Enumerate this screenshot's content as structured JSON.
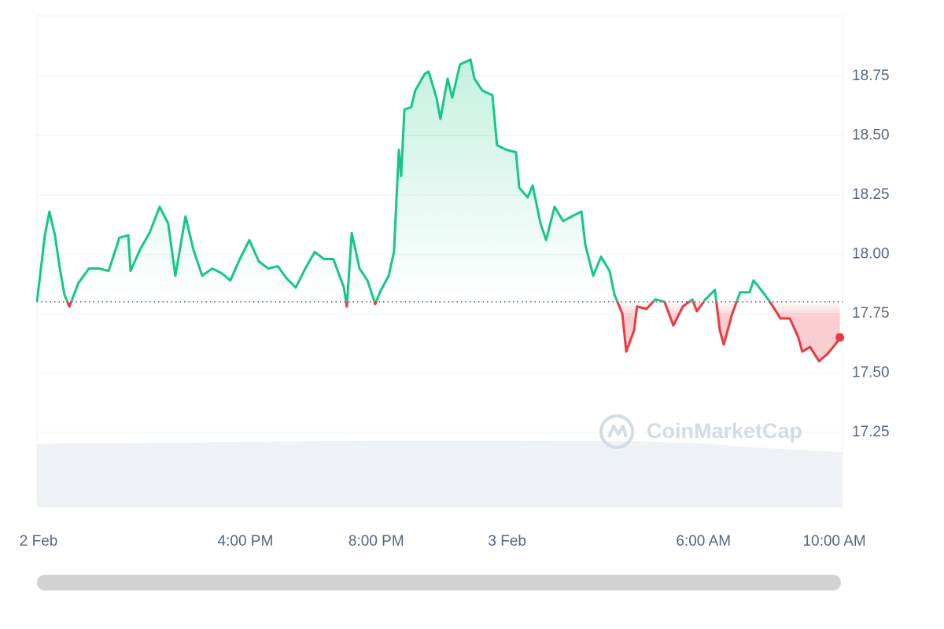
{
  "chart_data": {
    "type": "line",
    "x": [
      9.63,
      9.87,
      10.01,
      10.18,
      10.33,
      10.47,
      10.62,
      10.9,
      11.22,
      11.53,
      11.82,
      12.15,
      12.42,
      12.49,
      12.78,
      13.07,
      13.38,
      13.64,
      13.86,
      14.17,
      14.41,
      14.68,
      14.99,
      15.28,
      15.54,
      15.83,
      16.12,
      16.41,
      16.7,
      16.99,
      17.25,
      17.54,
      17.83,
      18.12,
      18.4,
      18.69,
      19.01,
      19.1,
      19.25,
      19.49,
      19.73,
      19.97,
      20.11,
      20.38,
      20.54,
      20.69,
      20.76,
      20.86,
      21.07,
      21.19,
      21.48,
      21.6,
      21.84,
      21.96,
      22.18,
      22.32,
      22.56,
      22.88,
      23.0,
      23.24,
      23.55,
      23.69,
      23.98,
      24.27,
      24.37,
      24.63,
      24.78,
      25.02,
      25.19,
      25.45,
      25.71,
      25.98,
      26.27,
      26.39,
      26.63,
      26.87,
      27.13,
      27.28,
      27.52,
      27.64,
      27.88,
      27.97,
      28.26,
      28.53,
      28.81,
      29.08,
      29.37,
      29.66,
      29.8,
      30.06,
      30.35,
      30.5,
      30.62,
      30.88,
      31.12,
      31.41,
      31.53,
      31.82,
      32.08,
      32.35,
      32.64,
      32.9,
      33.02,
      33.26,
      33.53,
      33.79,
      34.08,
      34.17
    ],
    "values": [
      17.8,
      18.08,
      18.18,
      18.08,
      17.94,
      17.83,
      17.78,
      17.88,
      17.94,
      17.94,
      17.93,
      18.07,
      18.08,
      17.93,
      18.02,
      18.09,
      18.2,
      18.13,
      17.91,
      18.16,
      18.02,
      17.91,
      17.94,
      17.92,
      17.89,
      17.98,
      18.06,
      17.97,
      17.94,
      17.95,
      17.9,
      17.86,
      17.94,
      18.01,
      17.98,
      17.98,
      17.86,
      17.78,
      18.09,
      17.94,
      17.89,
      17.79,
      17.84,
      17.91,
      18.01,
      18.44,
      18.33,
      18.61,
      18.62,
      18.69,
      18.76,
      18.77,
      18.66,
      18.57,
      18.74,
      18.66,
      18.8,
      18.82,
      18.74,
      18.69,
      18.67,
      18.46,
      18.44,
      18.43,
      18.28,
      18.24,
      18.29,
      18.13,
      18.06,
      18.2,
      18.14,
      18.16,
      18.18,
      18.04,
      17.91,
      17.99,
      17.93,
      17.83,
      17.75,
      17.59,
      17.68,
      17.78,
      17.77,
      17.81,
      17.8,
      17.7,
      17.78,
      17.81,
      17.76,
      17.81,
      17.85,
      17.68,
      17.62,
      17.75,
      17.84,
      17.84,
      17.89,
      17.84,
      17.79,
      17.73,
      17.73,
      17.65,
      17.59,
      17.61,
      17.55,
      17.58,
      17.63,
      17.65
    ],
    "baseline": 17.8,
    "color_up": "#16c784",
    "color_down": "#ea3943",
    "xlim": [
      9.63,
      34.25
    ],
    "xticks": [
      {
        "value": 9.68,
        "label": "2 Feb"
      },
      {
        "value": 16,
        "label": "4:00 PM"
      },
      {
        "value": 20,
        "label": "8:00 PM"
      },
      {
        "value": 24,
        "label": "3 Feb"
      },
      {
        "value": 30,
        "label": "6:00 AM"
      },
      {
        "value": 34,
        "label": "10:00 AM"
      }
    ],
    "ylim": [
      16.935,
      19.005
    ],
    "yticks": [
      17.25,
      {
        "value": 17.5,
        "label": "17.50"
      },
      17.75,
      {
        "value": 18,
        "label": "18.00"
      },
      18.25,
      {
        "value": 18.5,
        "label": "18.50"
      },
      18.75
    ],
    "grid": true,
    "volume": {
      "x": [
        9.63,
        10.4,
        12.1,
        16.0,
        20.0,
        24.0,
        28.0,
        30.0,
        31.2,
        32.5,
        34.25
      ],
      "values": [
        12.8,
        13.0,
        13.0,
        13.3,
        13.5,
        13.5,
        13.4,
        13.0,
        12.3,
        11.8,
        11.2
      ],
      "ylim": [
        0,
        100
      ],
      "color": "#eef1f5"
    },
    "watermark": "CoinMarketCap"
  }
}
